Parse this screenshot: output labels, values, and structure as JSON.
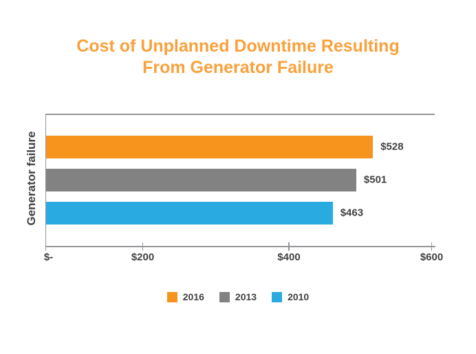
{
  "title": {
    "line1": "Cost of Unplanned Downtime Resulting",
    "line2": "From Generator Failure"
  },
  "chart_data": {
    "type": "bar",
    "orientation": "horizontal",
    "title": "Cost of Unplanned Downtime Resulting From Generator Failure",
    "category_label": "Generator failure",
    "categories": [
      "Generator failure"
    ],
    "series": [
      {
        "name": "2016",
        "value": 528,
        "data_label": "$528",
        "color": "#F7941E"
      },
      {
        "name": "2013",
        "value": 501,
        "data_label": "$501",
        "color": "#828282"
      },
      {
        "name": "2010",
        "value": 463,
        "data_label": "$463",
        "color": "#29ABE2"
      }
    ],
    "x_ticks": [
      {
        "label": "$-",
        "value": 0
      },
      {
        "label": "$200",
        "value": 200
      },
      {
        "label": "$400",
        "value": 400
      },
      {
        "label": "$600",
        "value": 600
      }
    ],
    "xlim": [
      0,
      600
    ],
    "grid": false,
    "legend_position": "bottom",
    "legend": [
      "2016",
      "2013",
      "2010"
    ]
  },
  "colors": {
    "title": "#F9A13C",
    "text": "#414042",
    "axis": "#939598",
    "background": "#FFFFFF",
    "bar_2016": "#F7941E",
    "bar_2013": "#828282",
    "bar_2010": "#29ABE2"
  }
}
